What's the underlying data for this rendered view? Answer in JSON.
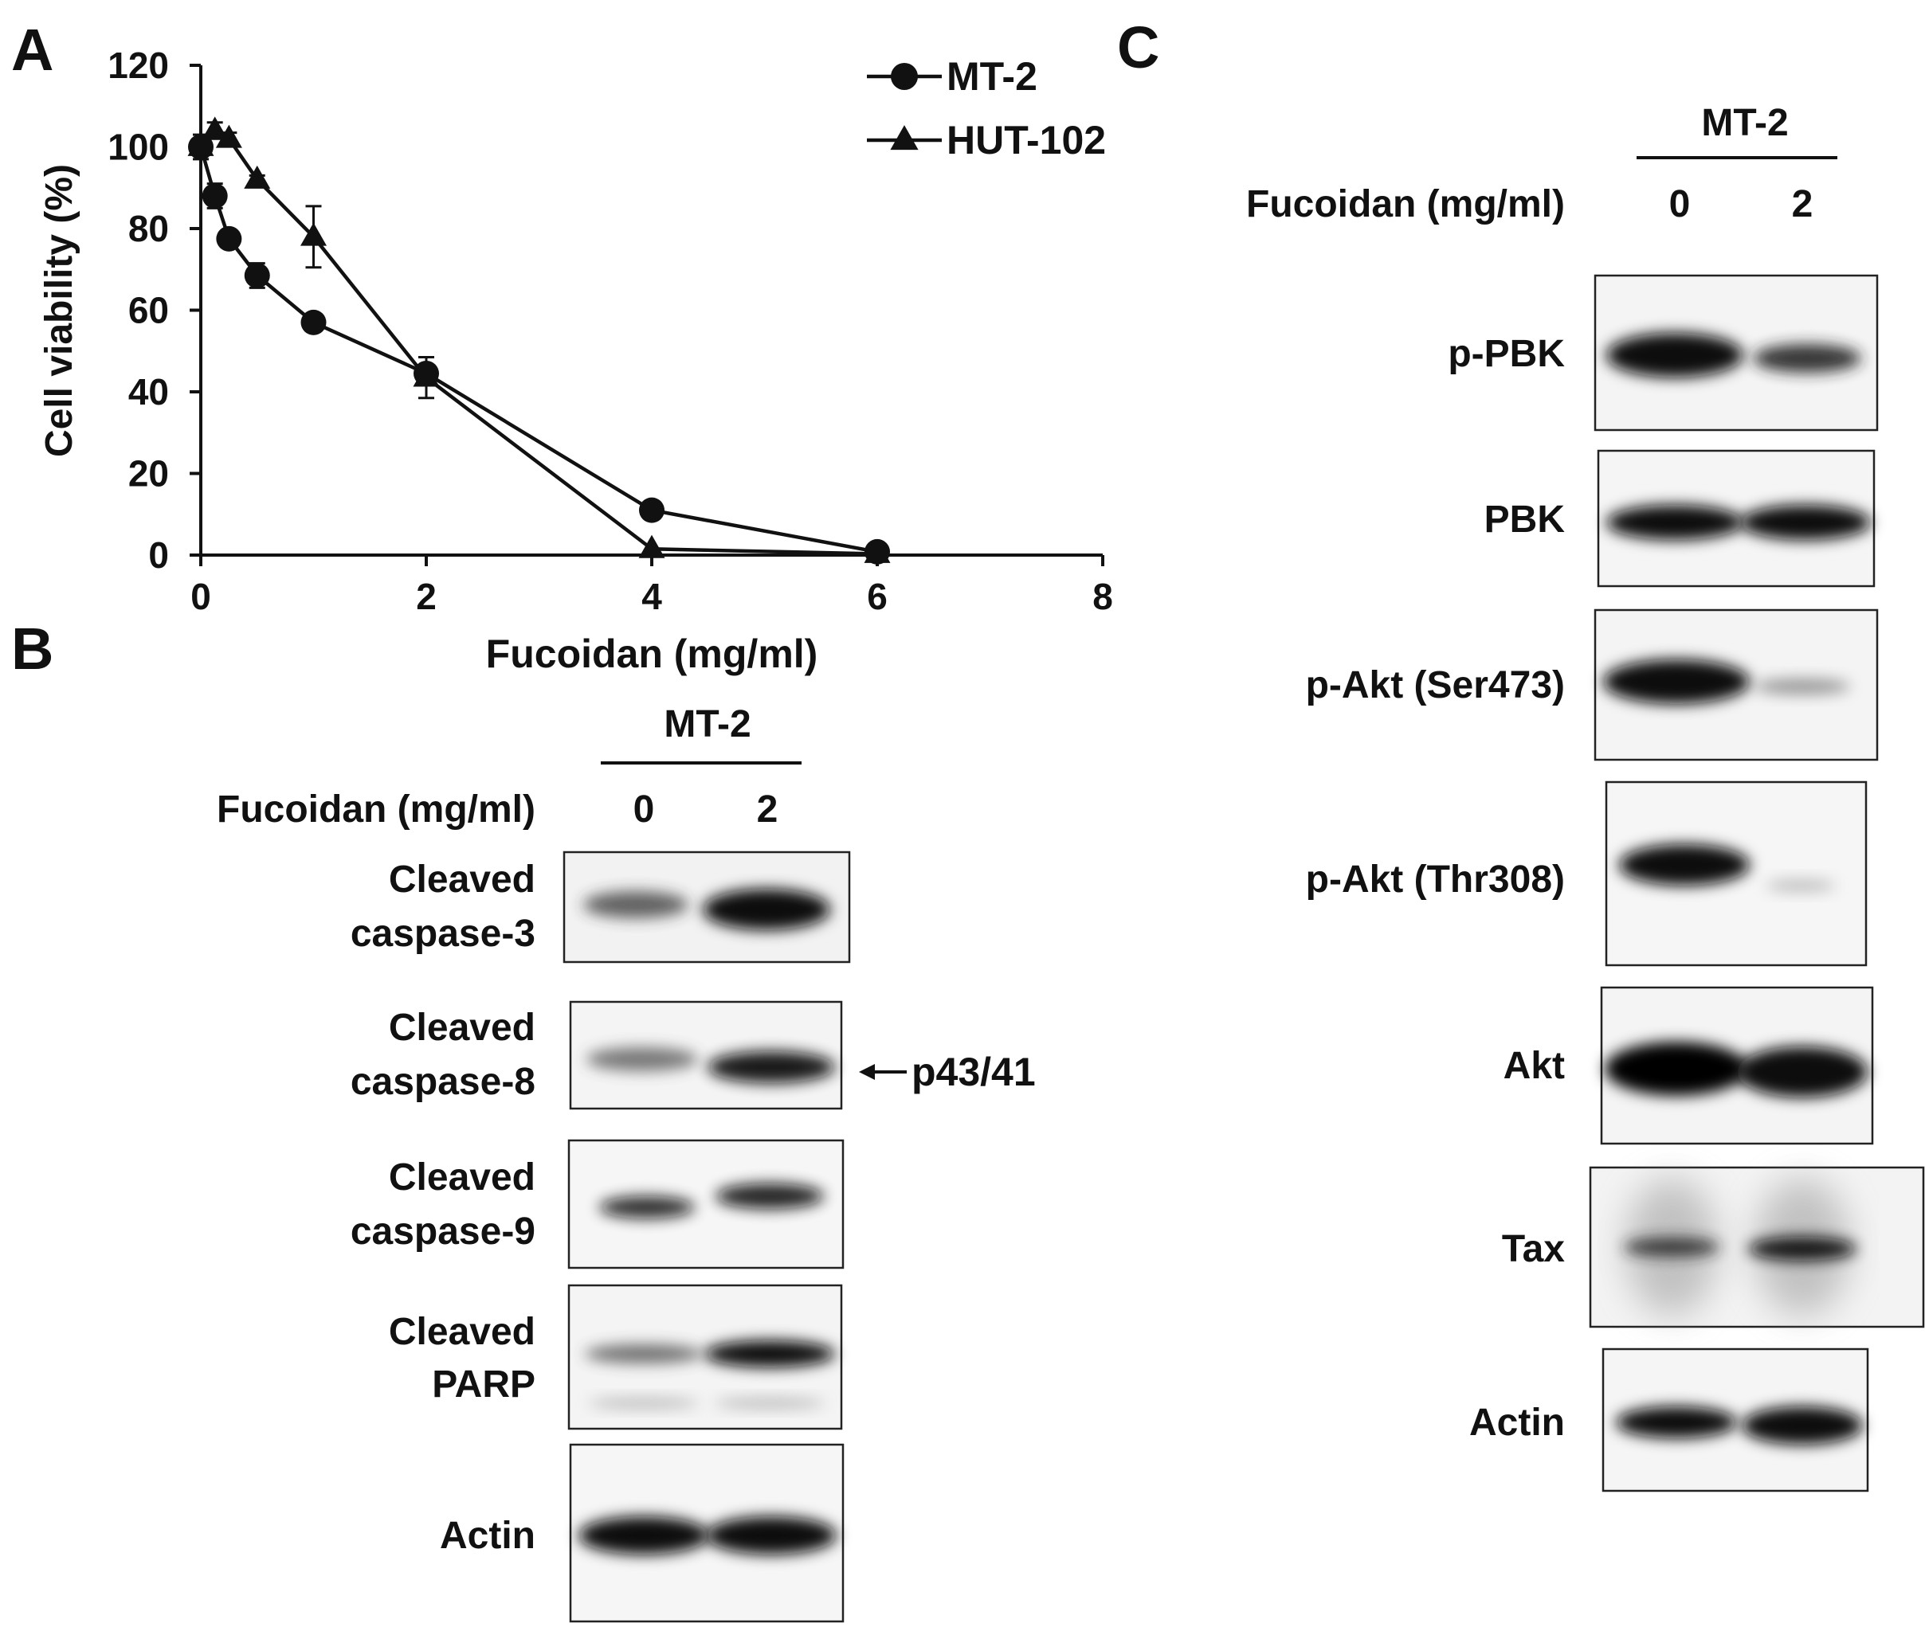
{
  "panels": {
    "a": "A",
    "b": "B",
    "c": "C"
  },
  "chart_data": {
    "type": "line",
    "xlabel": "Fucoidan (mg/ml)",
    "ylabel": "Cell viability (%)",
    "xlim": [
      0,
      8
    ],
    "ylim": [
      0,
      120
    ],
    "xticks": [
      "0",
      "2",
      "4",
      "6",
      "8"
    ],
    "yticks": [
      "0",
      "20",
      "40",
      "60",
      "80",
      "100",
      "120"
    ],
    "legend_position": "top-right",
    "series": [
      {
        "name": "MT-2",
        "marker": "circle",
        "points": [
          {
            "x": 0,
            "y": 100,
            "err": 0
          },
          {
            "x": 0.125,
            "y": 88,
            "err": 3
          },
          {
            "x": 0.25,
            "y": 77.5,
            "err": 1
          },
          {
            "x": 0.5,
            "y": 68.5,
            "err": 3
          },
          {
            "x": 1,
            "y": 57,
            "err": 1
          },
          {
            "x": 2,
            "y": 44.5,
            "err": 2
          },
          {
            "x": 4,
            "y": 11,
            "err": 0
          },
          {
            "x": 6,
            "y": 0.8,
            "err": 0
          }
        ]
      },
      {
        "name": "HUT-102",
        "marker": "triangle",
        "points": [
          {
            "x": 0,
            "y": 100,
            "err": 3
          },
          {
            "x": 0.125,
            "y": 104,
            "err": 2
          },
          {
            "x": 0.25,
            "y": 102,
            "err": 1.5
          },
          {
            "x": 0.5,
            "y": 92,
            "err": 1
          },
          {
            "x": 1,
            "y": 78,
            "err": 7.5
          },
          {
            "x": 2,
            "y": 43.5,
            "err": 5
          },
          {
            "x": 4,
            "y": 1.5,
            "err": 0
          },
          {
            "x": 6,
            "y": 0.3,
            "err": 0
          }
        ]
      }
    ]
  },
  "blots_b": {
    "group": "MT-2",
    "treatment_label": "Fucoidan (mg/ml)",
    "lanes": [
      "0",
      "2"
    ],
    "arrow_label": "p43/41",
    "rows": [
      {
        "line1": "Cleaved",
        "line2": "caspase-3"
      },
      {
        "line1": "Cleaved",
        "line2": "caspase-8"
      },
      {
        "line1": "Cleaved",
        "line2": "caspase-9"
      },
      {
        "line1": "Cleaved",
        "line2": "PARP"
      },
      {
        "line1": "Actin",
        "line2": ""
      }
    ]
  },
  "blots_c": {
    "group": "MT-2",
    "treatment_label": "Fucoidan (mg/ml)",
    "lanes": [
      "0",
      "2"
    ],
    "rows": [
      {
        "label": "p-PBK"
      },
      {
        "label": "PBK"
      },
      {
        "label": "p-Akt (Ser473)"
      },
      {
        "label": "p-Akt (Thr308)"
      },
      {
        "label": "Akt"
      },
      {
        "label": "Tax"
      },
      {
        "label": "Actin"
      }
    ]
  }
}
